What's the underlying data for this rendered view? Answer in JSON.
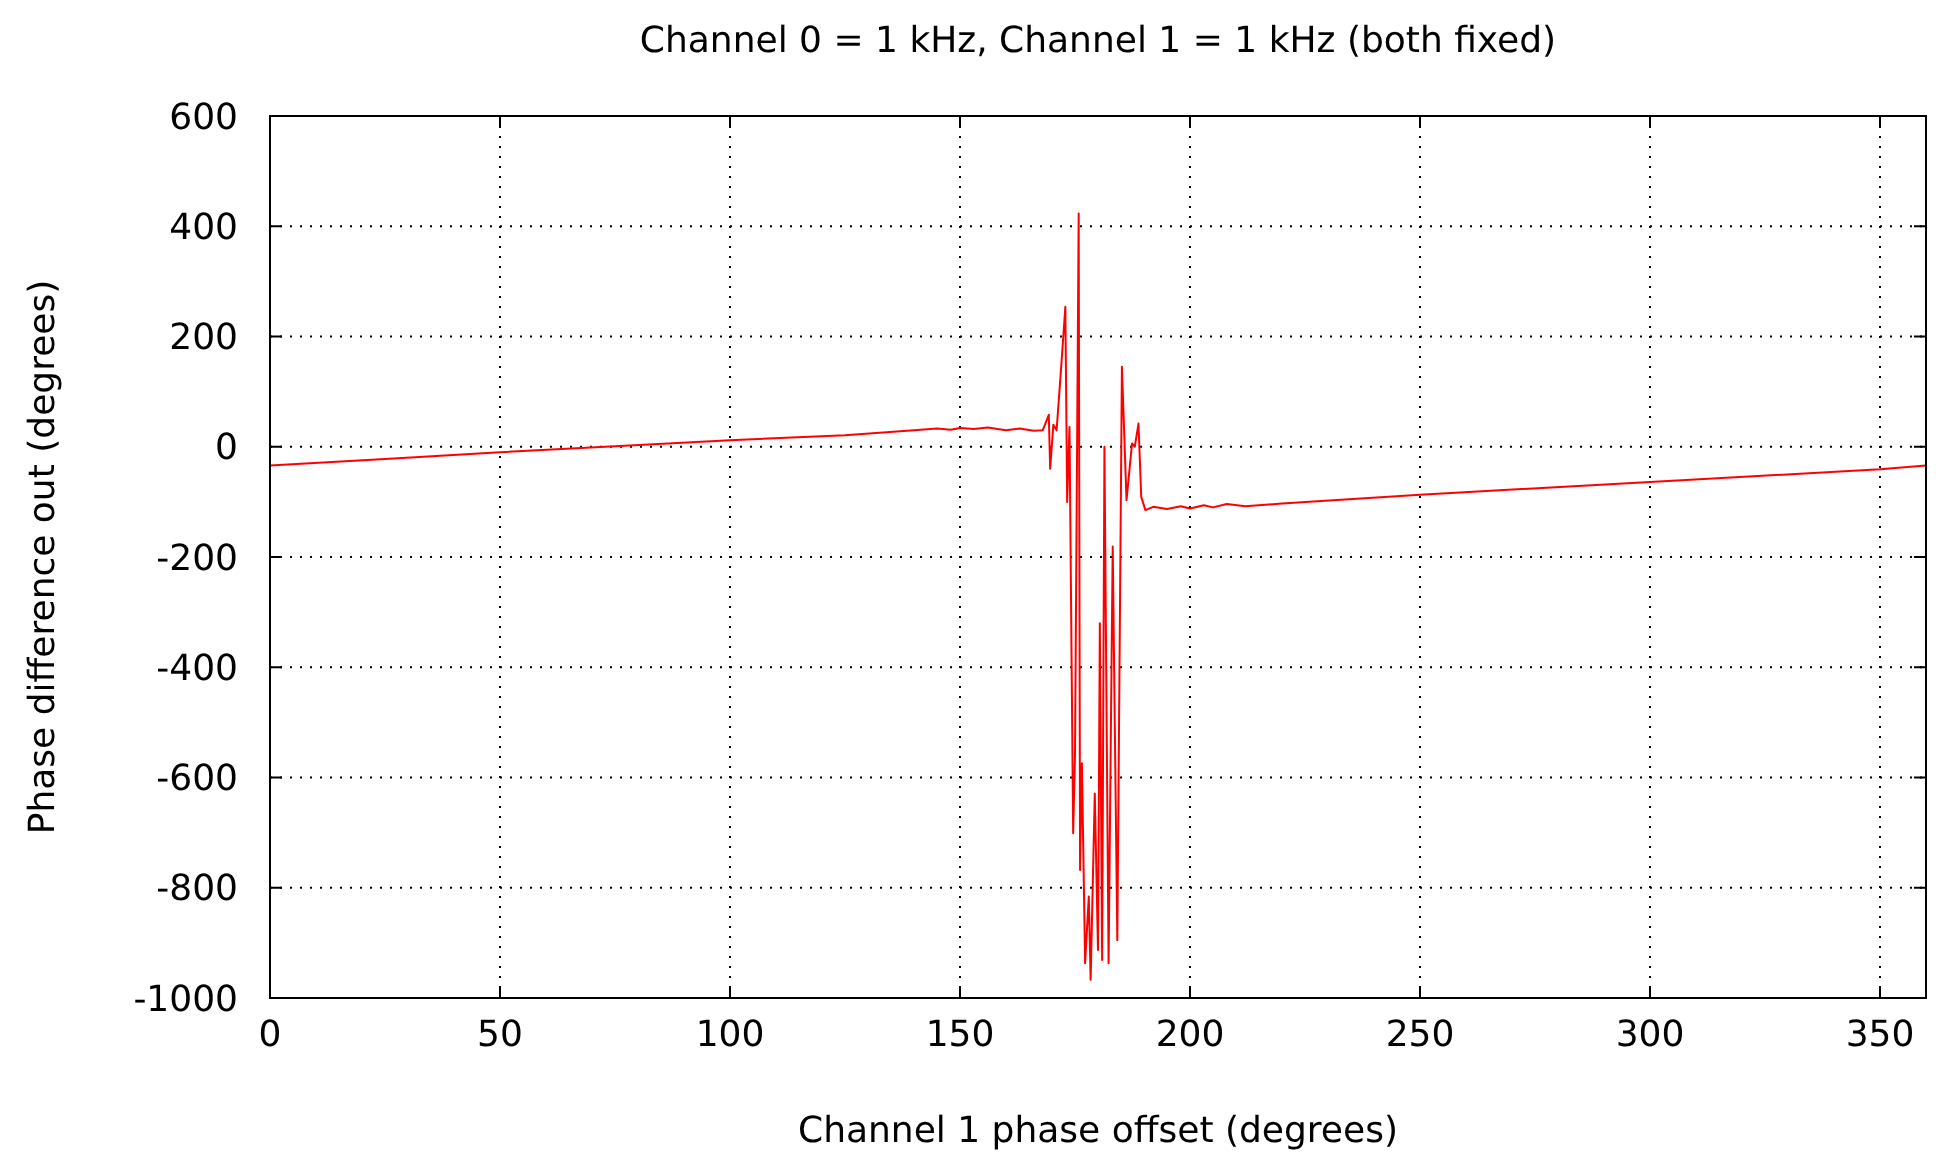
{
  "chart_data": {
    "type": "line",
    "title": "Channel 0 = 1 kHz, Channel 1 = 1 kHz (both fixed)",
    "xlabel": "Channel 1 phase offset (degrees)",
    "ylabel": "Phase difference out (degrees)",
    "xlim": [
      0,
      360
    ],
    "ylim": [
      -1000,
      600
    ],
    "xticks": [
      0,
      50,
      100,
      150,
      200,
      250,
      300,
      350
    ],
    "yticks": [
      600,
      400,
      200,
      0,
      -200,
      -400,
      -600,
      -800,
      -1000
    ],
    "grid": true,
    "line_style": "solid",
    "marker": "none",
    "series": [
      {
        "color": "#ff0000",
        "x": [
          0,
          25,
          50,
          75,
          100,
          125,
          140,
          145,
          148,
          150,
          153,
          156,
          160,
          163,
          166,
          168,
          169.3,
          169.6,
          170.3,
          171,
          172,
          172.9,
          173.3,
          173.8,
          174.6,
          175,
          175.8,
          176.1,
          176.5,
          177.2,
          178,
          178.4,
          179.3,
          180,
          180.4,
          180.9,
          181.4,
          182.3,
          183.2,
          184.2,
          185.2,
          186.2,
          187.4,
          188,
          188.8,
          189.4,
          190.3,
          192,
          195,
          198,
          200,
          203,
          205,
          208,
          212,
          220,
          250,
          300,
          350,
          360
        ],
        "values": [
          -34,
          -22,
          -10,
          1,
          12,
          21,
          30,
          33,
          31,
          34,
          32,
          35,
          30,
          33,
          29,
          30,
          58,
          -40,
          40,
          30,
          145,
          254,
          -100,
          36,
          -701,
          -560,
          423,
          -768,
          -574,
          -937,
          -816,
          -967,
          -629,
          -913,
          -320,
          -931,
          0,
          -937,
          -181,
          -895,
          145,
          -97,
          6,
          0,
          42,
          -91,
          -115,
          -109,
          -113,
          -108,
          -112,
          -106,
          -110,
          -104,
          -108,
          -103,
          -87,
          -64,
          -41,
          -34
        ]
      }
    ]
  }
}
